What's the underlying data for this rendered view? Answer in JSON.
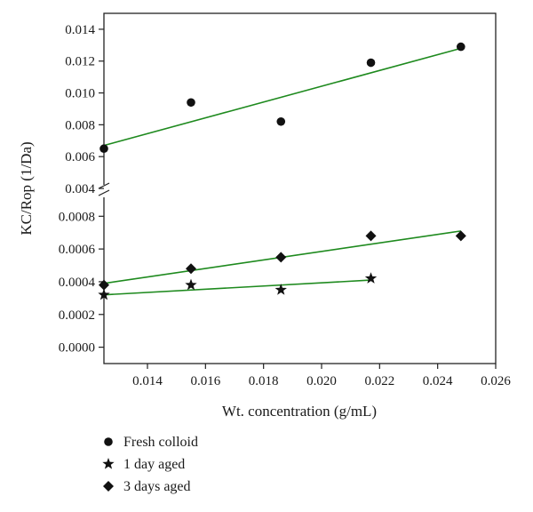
{
  "chart_data": {
    "type": "scatter",
    "xlabel": "Wt. concentration (g/mL)",
    "ylabel": "KC/Rop (1/Da)",
    "xlim": [
      0.0125,
      0.026
    ],
    "x_ticks": [
      "0.014",
      "0.016",
      "0.018",
      "0.020",
      "0.022",
      "0.024",
      "0.026"
    ],
    "y_axis_broken": true,
    "upper_panel": {
      "ylim": [
        0.004,
        0.015
      ],
      "y_ticks": [
        "0.004",
        "0.006",
        "0.008",
        "0.010",
        "0.012",
        "0.014"
      ]
    },
    "lower_panel": {
      "ylim": [
        -0.0001,
        0.00097
      ],
      "y_ticks": [
        "0.0000",
        "0.0002",
        "0.0004",
        "0.0006",
        "0.0008"
      ]
    },
    "line_color": "#1e8a1e",
    "grid": false,
    "legend_position": "bottom-left",
    "series": [
      {
        "name": "Fresh colloid",
        "marker": "circle",
        "panel": "upper",
        "x": [
          0.0125,
          0.0155,
          0.0186,
          0.0217,
          0.0248
        ],
        "y": [
          0.0065,
          0.0094,
          0.0082,
          0.0119,
          0.0129
        ],
        "fit": {
          "x": [
            0.0125,
            0.0248
          ],
          "y": [
            0.0067,
            0.0128
          ]
        }
      },
      {
        "name": "1 day aged",
        "marker": "star",
        "panel": "lower",
        "x": [
          0.0125,
          0.0155,
          0.0186,
          0.0217
        ],
        "y": [
          0.00032,
          0.00038,
          0.00035,
          0.00042
        ],
        "fit": {
          "x": [
            0.0125,
            0.0217
          ],
          "y": [
            0.00032,
            0.00041
          ]
        }
      },
      {
        "name": "3 days aged",
        "marker": "diamond",
        "panel": "lower",
        "x": [
          0.0125,
          0.0155,
          0.0186,
          0.0217,
          0.0248
        ],
        "y": [
          0.00038,
          0.00048,
          0.00055,
          0.00068,
          0.00068
        ],
        "fit": {
          "x": [
            0.0125,
            0.0248
          ],
          "y": [
            0.00039,
            0.00071
          ]
        }
      }
    ]
  }
}
